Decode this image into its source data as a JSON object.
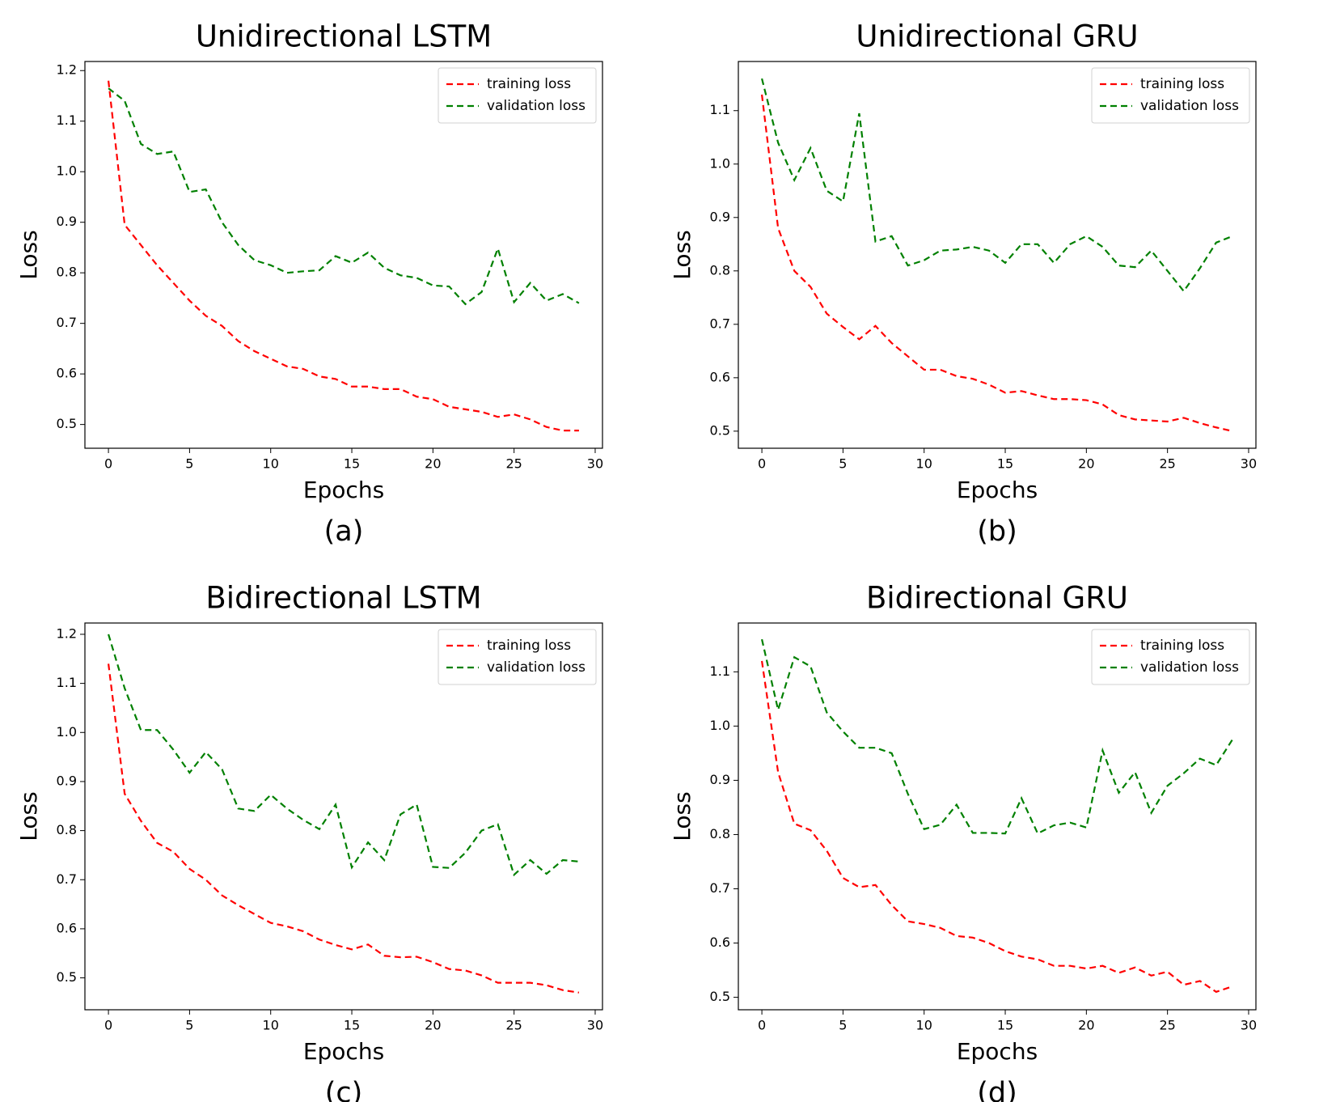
{
  "chart_data": [
    {
      "type": "line",
      "title": "Unidirectional LSTM",
      "caption": "(a)",
      "xlabel": "Epochs",
      "ylabel": "Loss",
      "x": [
        0,
        1,
        2,
        3,
        4,
        5,
        6,
        7,
        8,
        9,
        10,
        11,
        12,
        13,
        14,
        15,
        16,
        17,
        18,
        19,
        20,
        21,
        22,
        23,
        24,
        25,
        26,
        27,
        28,
        29
      ],
      "series": [
        {
          "name": "training loss",
          "color": "#ff0000",
          "values": [
            1.18,
            0.895,
            0.855,
            0.815,
            0.78,
            0.745,
            0.715,
            0.695,
            0.665,
            0.645,
            0.63,
            0.615,
            0.61,
            0.595,
            0.59,
            0.575,
            0.575,
            0.57,
            0.57,
            0.555,
            0.55,
            0.535,
            0.53,
            0.525,
            0.515,
            0.52,
            0.51,
            0.495,
            0.488,
            0.488
          ]
        },
        {
          "name": "validation loss",
          "color": "#008000",
          "values": [
            1.165,
            1.14,
            1.055,
            1.035,
            1.04,
            0.96,
            0.965,
            0.9,
            0.855,
            0.825,
            0.815,
            0.8,
            0.803,
            0.805,
            0.833,
            0.82,
            0.84,
            0.81,
            0.795,
            0.79,
            0.775,
            0.773,
            0.738,
            0.762,
            0.848,
            0.742,
            0.78,
            0.745,
            0.758,
            0.74
          ]
        }
      ],
      "xlim": [
        -1.45,
        30.45
      ],
      "ylim": [
        0.453,
        1.218
      ],
      "xticks": [
        0,
        5,
        10,
        15,
        20,
        25,
        30
      ],
      "yticks": [
        0.5,
        0.6,
        0.7,
        0.8,
        0.9,
        {
          "value": 1.0,
          "label": "1.0"
        },
        1.1,
        1.2
      ],
      "legend": "upper right"
    },
    {
      "type": "line",
      "title": "Unidirectional GRU",
      "caption": "(b)",
      "xlabel": "Epochs",
      "ylabel": "Loss",
      "x": [
        0,
        1,
        2,
        3,
        4,
        5,
        6,
        7,
        8,
        9,
        10,
        11,
        12,
        13,
        14,
        15,
        16,
        17,
        18,
        19,
        20,
        21,
        22,
        23,
        24,
        25,
        26,
        27,
        28,
        29
      ],
      "series": [
        {
          "name": "training loss",
          "color": "#ff0000",
          "values": [
            1.13,
            0.88,
            0.8,
            0.77,
            0.72,
            0.695,
            0.672,
            0.697,
            0.665,
            0.64,
            0.615,
            0.615,
            0.603,
            0.598,
            0.587,
            0.572,
            0.575,
            0.567,
            0.56,
            0.56,
            0.558,
            0.55,
            0.53,
            0.522,
            0.52,
            0.518,
            0.525,
            0.515,
            0.507,
            0.5
          ]
        },
        {
          "name": "validation loss",
          "color": "#008000",
          "values": [
            1.16,
            1.04,
            0.97,
            1.03,
            0.95,
            0.93,
            1.095,
            0.855,
            0.865,
            0.81,
            0.82,
            0.838,
            0.84,
            0.845,
            0.838,
            0.815,
            0.85,
            0.85,
            0.815,
            0.85,
            0.865,
            0.845,
            0.81,
            0.807,
            0.838,
            0.8,
            0.762,
            0.805,
            0.853,
            0.865
          ]
        }
      ],
      "xlim": [
        -1.45,
        30.45
      ],
      "ylim": [
        0.468,
        1.192
      ],
      "xticks": [
        0,
        5,
        10,
        15,
        20,
        25,
        30
      ],
      "yticks": [
        0.5,
        0.6,
        0.7,
        0.8,
        0.9,
        {
          "value": 1.0,
          "label": "1.0"
        },
        1.1
      ],
      "legend": "upper right"
    },
    {
      "type": "line",
      "title": "Bidirectional LSTM",
      "caption": "(c)",
      "xlabel": "Epochs",
      "ylabel": "Loss",
      "x": [
        0,
        1,
        2,
        3,
        4,
        5,
        6,
        7,
        8,
        9,
        10,
        11,
        12,
        13,
        14,
        15,
        16,
        17,
        18,
        19,
        20,
        21,
        22,
        23,
        24,
        25,
        26,
        27,
        28,
        29
      ],
      "series": [
        {
          "name": "training loss",
          "color": "#ff0000",
          "values": [
            1.14,
            0.875,
            0.82,
            0.775,
            0.757,
            0.722,
            0.7,
            0.668,
            0.648,
            0.63,
            0.612,
            0.605,
            0.595,
            0.578,
            0.567,
            0.558,
            0.568,
            0.545,
            0.542,
            0.543,
            0.532,
            0.518,
            0.515,
            0.505,
            0.49,
            0.49,
            0.49,
            0.485,
            0.475,
            0.47
          ]
        },
        {
          "name": "validation loss",
          "color": "#008000",
          "values": [
            1.2,
            1.09,
            1.005,
            1.005,
            0.965,
            0.918,
            0.96,
            0.925,
            0.845,
            0.84,
            0.873,
            0.845,
            0.822,
            0.803,
            0.853,
            0.725,
            0.776,
            0.74,
            0.833,
            0.853,
            0.726,
            0.724,
            0.755,
            0.8,
            0.813,
            0.71,
            0.74,
            0.712,
            0.74,
            0.737
          ]
        }
      ],
      "xlim": [
        -1.45,
        30.45
      ],
      "ylim": [
        0.435,
        1.223
      ],
      "xticks": [
        0,
        5,
        10,
        15,
        20,
        25,
        30
      ],
      "yticks": [
        0.5,
        0.6,
        0.7,
        0.8,
        0.9,
        {
          "value": 1.0,
          "label": "1.0"
        },
        1.1,
        1.2
      ],
      "legend": "upper right"
    },
    {
      "type": "line",
      "title": "Bidirectional GRU",
      "caption": "(d)",
      "xlabel": "Epochs",
      "ylabel": "Loss",
      "x": [
        0,
        1,
        2,
        3,
        4,
        5,
        6,
        7,
        8,
        9,
        10,
        11,
        12,
        13,
        14,
        15,
        16,
        17,
        18,
        19,
        20,
        21,
        22,
        23,
        24,
        25,
        26,
        27,
        28,
        29
      ],
      "series": [
        {
          "name": "training loss",
          "color": "#ff0000",
          "values": [
            1.12,
            0.915,
            0.82,
            0.808,
            0.77,
            0.72,
            0.703,
            0.707,
            0.67,
            0.64,
            0.635,
            0.628,
            0.613,
            0.61,
            0.6,
            0.585,
            0.575,
            0.57,
            0.558,
            0.558,
            0.553,
            0.558,
            0.545,
            0.555,
            0.54,
            0.547,
            0.523,
            0.53,
            0.51,
            0.52
          ]
        },
        {
          "name": "validation loss",
          "color": "#008000",
          "values": [
            1.16,
            1.03,
            1.127,
            1.11,
            1.025,
            0.99,
            0.96,
            0.96,
            0.95,
            0.875,
            0.81,
            0.818,
            0.855,
            0.803,
            0.803,
            0.802,
            0.867,
            0.802,
            0.817,
            0.822,
            0.813,
            0.955,
            0.877,
            0.915,
            0.84,
            0.89,
            0.913,
            0.94,
            0.928,
            0.975
          ]
        }
      ],
      "xlim": [
        -1.45,
        30.45
      ],
      "ylim": [
        0.477,
        1.19
      ],
      "xticks": [
        0,
        5,
        10,
        15,
        20,
        25,
        30
      ],
      "yticks": [
        0.5,
        0.6,
        0.7,
        0.8,
        0.9,
        {
          "value": 1.0,
          "label": "1.0"
        },
        1.1
      ],
      "legend": "upper right"
    }
  ]
}
